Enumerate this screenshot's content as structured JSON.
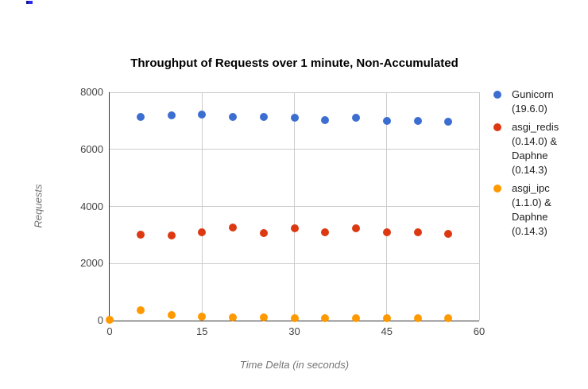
{
  "page": {
    "background": "#ffffff",
    "stray_artifact": {
      "description": "tiny blue mark top-left",
      "color": "#2b2bee"
    }
  },
  "chart_data": {
    "type": "scatter",
    "title": "Throughput of Requests over 1 minute, Non-Accumulated",
    "xlabel": "Time Delta (in seconds)",
    "ylabel": "Requests",
    "xlim": [
      0,
      60
    ],
    "ylim": [
      0,
      8000
    ],
    "x_ticks": [
      0,
      15,
      30,
      45,
      60
    ],
    "y_ticks": [
      0,
      2000,
      4000,
      6000,
      8000
    ],
    "grid": true,
    "legend_position": "right",
    "axis_color": "#333333",
    "gridline_color": "#cccccc",
    "series": [
      {
        "name": "Gunicorn (19.6.0)",
        "legend_lines": [
          "Gunicorn",
          "(19.6.0)"
        ],
        "color": "#3c6ed2",
        "x": [
          5,
          10,
          15,
          20,
          25,
          30,
          35,
          40,
          45,
          50,
          55
        ],
        "y": [
          7130,
          7200,
          7230,
          7130,
          7140,
          7120,
          7030,
          7120,
          7010,
          6990,
          6970
        ]
      },
      {
        "name": "asgi_redis (0.14.0) & Daphne (0.14.3)",
        "legend_lines": [
          "asgi_redis",
          "(0.14.0) &",
          "Daphne",
          "(0.14.3)"
        ],
        "color": "#dc3912",
        "x": [
          5,
          10,
          15,
          20,
          25,
          30,
          35,
          40,
          45,
          50,
          55
        ],
        "y": [
          3020,
          2990,
          3090,
          3270,
          3070,
          3230,
          3100,
          3230,
          3100,
          3100,
          3030
        ]
      },
      {
        "name": "asgi_ipc (1.1.0) & Daphne (0.14.3)",
        "legend_lines": [
          "asgi_ipc",
          "(1.1.0) &",
          "Daphne",
          "(0.14.3)"
        ],
        "color": "#ff9900",
        "x": [
          0,
          5,
          10,
          15,
          20,
          25,
          30,
          35,
          40,
          45,
          50,
          55
        ],
        "y": [
          20,
          370,
          200,
          140,
          100,
          100,
          90,
          80,
          80,
          80,
          75,
          70
        ]
      }
    ]
  }
}
